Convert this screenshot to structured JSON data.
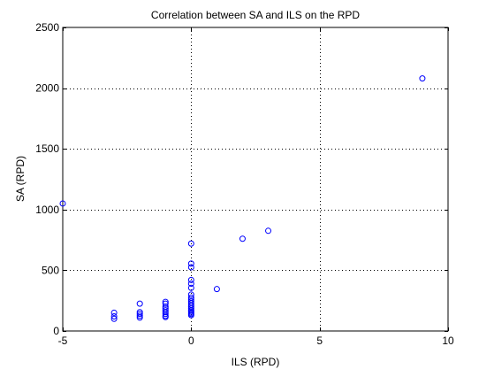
{
  "chart_data": {
    "type": "scatter",
    "title": "Correlation between SA and ILS on the RPD",
    "xlabel": "ILS (RPD)",
    "ylabel": "SA (RPD)",
    "xlim": [
      -5,
      10
    ],
    "ylim": [
      0,
      2500
    ],
    "xticks": [
      -5,
      0,
      5,
      10
    ],
    "yticks": [
      0,
      500,
      1000,
      1500,
      2000,
      2500
    ],
    "grid": true,
    "marker": "circle-open",
    "color": "#0000ff",
    "points": [
      {
        "x": -5,
        "y": 1050
      },
      {
        "x": 9,
        "y": 2080
      },
      {
        "x": 3,
        "y": 825
      },
      {
        "x": 2,
        "y": 760
      },
      {
        "x": 1,
        "y": 345
      },
      {
        "x": -3,
        "y": 150
      },
      {
        "x": -3,
        "y": 120
      },
      {
        "x": -3,
        "y": 100
      },
      {
        "x": -2,
        "y": 225
      },
      {
        "x": -2,
        "y": 155
      },
      {
        "x": -2,
        "y": 140
      },
      {
        "x": -2,
        "y": 125
      },
      {
        "x": -2,
        "y": 110
      },
      {
        "x": -1,
        "y": 240
      },
      {
        "x": -1,
        "y": 225
      },
      {
        "x": -1,
        "y": 200
      },
      {
        "x": -1,
        "y": 185
      },
      {
        "x": -1,
        "y": 170
      },
      {
        "x": -1,
        "y": 155
      },
      {
        "x": -1,
        "y": 140
      },
      {
        "x": -1,
        "y": 125
      },
      {
        "x": -1,
        "y": 115
      },
      {
        "x": 0,
        "y": 720
      },
      {
        "x": 0,
        "y": 555
      },
      {
        "x": 0,
        "y": 525
      },
      {
        "x": 0,
        "y": 420
      },
      {
        "x": 0,
        "y": 390
      },
      {
        "x": 0,
        "y": 355
      },
      {
        "x": 0,
        "y": 300
      },
      {
        "x": 0,
        "y": 275
      },
      {
        "x": 0,
        "y": 260
      },
      {
        "x": 0,
        "y": 245
      },
      {
        "x": 0,
        "y": 230
      },
      {
        "x": 0,
        "y": 215
      },
      {
        "x": 0,
        "y": 200
      },
      {
        "x": 0,
        "y": 185
      },
      {
        "x": 0,
        "y": 170
      },
      {
        "x": 0,
        "y": 160
      },
      {
        "x": 0,
        "y": 150
      },
      {
        "x": 0,
        "y": 140
      },
      {
        "x": 0,
        "y": 130
      }
    ]
  }
}
